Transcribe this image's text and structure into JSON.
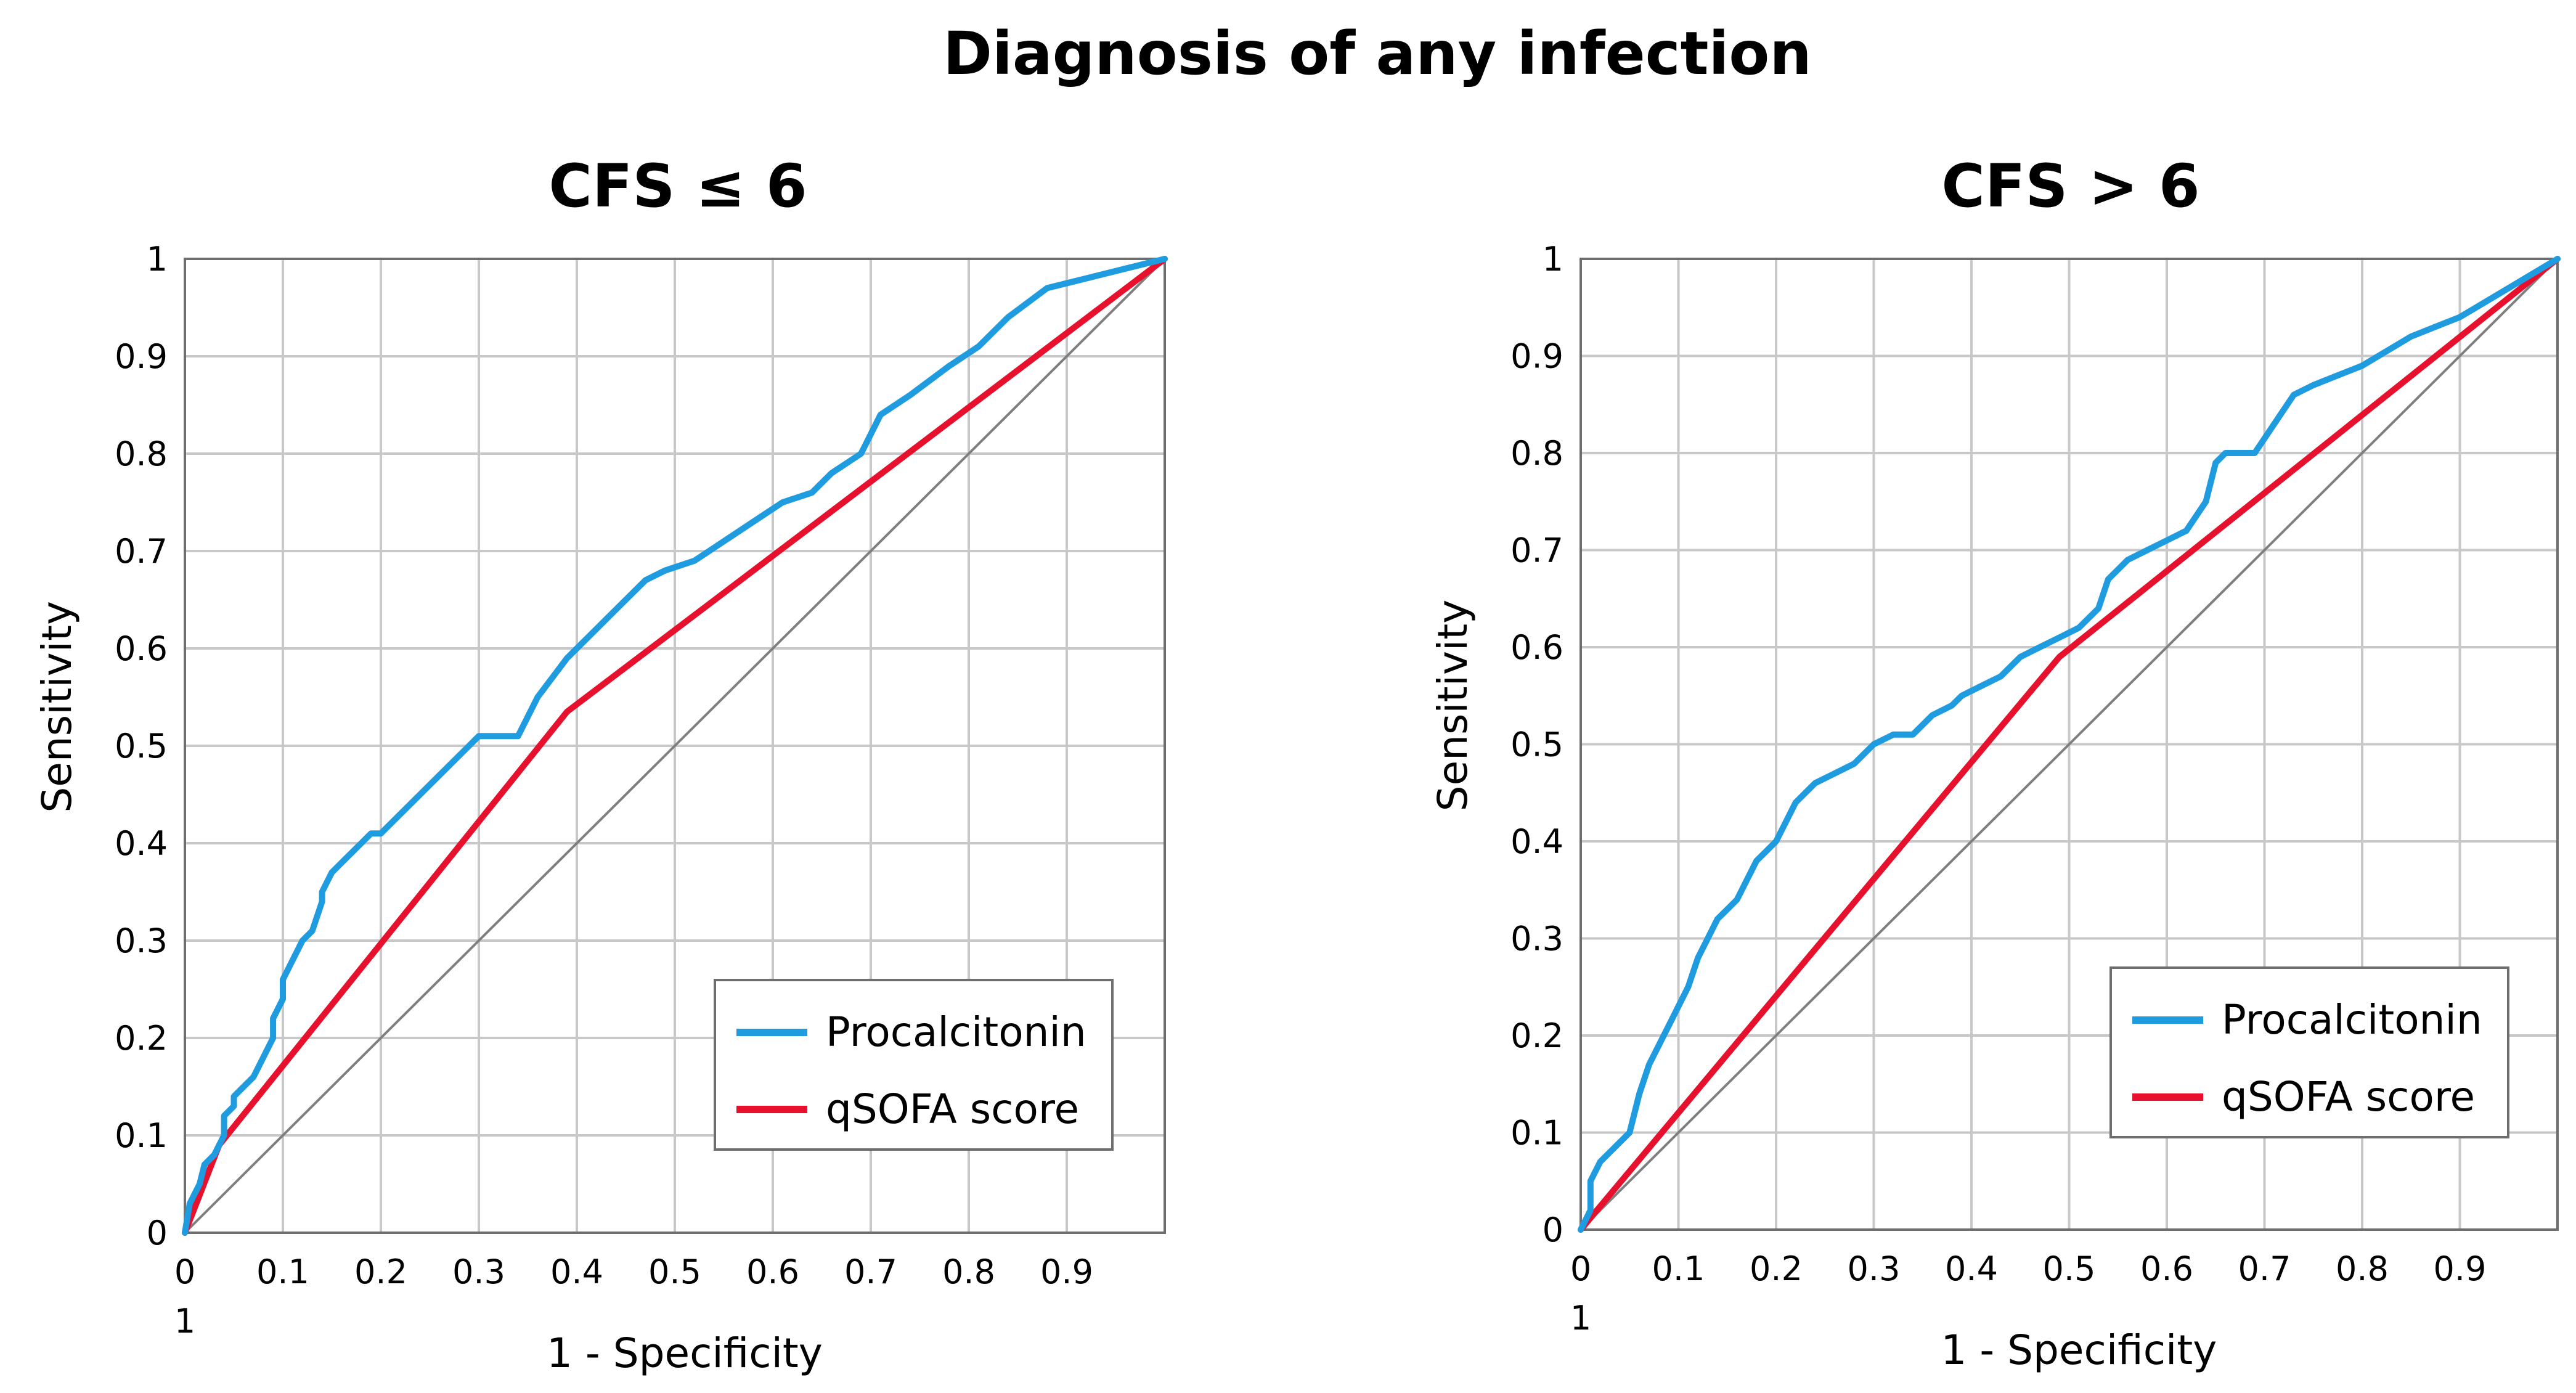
{
  "title": "Diagnosis of any infection",
  "colors": {
    "procalcitonin": "#1f9be0",
    "qsofa": "#e8112d",
    "reference": "#7f7f7f",
    "grid": "#c8c8c8"
  },
  "chart_data": [
    {
      "type": "line",
      "title": "CFS ≤ 6",
      "xlabel": "1 - Specificity",
      "ylabel": "Sensitivity",
      "xlim": [
        0,
        1
      ],
      "ylim": [
        0,
        1
      ],
      "x_ticks": [
        "0",
        "0.1",
        "0.2",
        "0.3",
        "0.4",
        "0.5",
        "0.6",
        "0.7",
        "0.8",
        "0.9"
      ],
      "x_ticks_extra": "1",
      "y_ticks": [
        "0",
        "0.1",
        "0.2",
        "0.3",
        "0.4",
        "0.5",
        "0.6",
        "0.7",
        "0.8",
        "0.9",
        "1"
      ],
      "legend": [
        "Procalcitonin",
        "qSOFA score"
      ],
      "series": [
        {
          "name": "Procalcitonin",
          "color": "#1f9be0",
          "x": [
            0,
            0.005,
            0.015,
            0.02,
            0.03,
            0.04,
            0.04,
            0.05,
            0.05,
            0.07,
            0.08,
            0.09,
            0.09,
            0.1,
            0.1,
            0.11,
            0.12,
            0.13,
            0.14,
            0.14,
            0.15,
            0.16,
            0.17,
            0.18,
            0.19,
            0.2,
            0.22,
            0.23,
            0.25,
            0.27,
            0.29,
            0.3,
            0.34,
            0.36,
            0.39,
            0.41,
            0.43,
            0.45,
            0.47,
            0.49,
            0.52,
            0.55,
            0.58,
            0.61,
            0.64,
            0.66,
            0.69,
            0.71,
            0.74,
            0.78,
            0.81,
            0.84,
            0.88,
            0.92,
            1.0
          ],
          "y": [
            0,
            0.03,
            0.05,
            0.07,
            0.08,
            0.1,
            0.12,
            0.13,
            0.14,
            0.16,
            0.18,
            0.2,
            0.22,
            0.24,
            0.26,
            0.28,
            0.3,
            0.31,
            0.34,
            0.35,
            0.37,
            0.38,
            0.39,
            0.4,
            0.41,
            0.41,
            0.43,
            0.44,
            0.46,
            0.48,
            0.5,
            0.51,
            0.51,
            0.55,
            0.59,
            0.61,
            0.63,
            0.65,
            0.67,
            0.68,
            0.69,
            0.71,
            0.73,
            0.75,
            0.76,
            0.78,
            0.8,
            0.84,
            0.86,
            0.89,
            0.91,
            0.94,
            0.97,
            0.98,
            1.0
          ]
        },
        {
          "name": "qSOFA score",
          "color": "#e8112d",
          "x": [
            0,
            0.035,
            0.39,
            1.0
          ],
          "y": [
            0,
            0.09,
            0.535,
            1.0
          ]
        },
        {
          "name": "Reference",
          "color": "#7f7f7f",
          "x": [
            0,
            1
          ],
          "y": [
            0,
            1
          ]
        }
      ]
    },
    {
      "type": "line",
      "title": "CFS > 6",
      "xlabel": "1 - Specificity",
      "ylabel": "Sensitivity",
      "xlim": [
        0,
        1
      ],
      "ylim": [
        0,
        1
      ],
      "x_ticks": [
        "0",
        "0.1",
        "0.2",
        "0.3",
        "0.4",
        "0.5",
        "0.6",
        "0.7",
        "0.8",
        "0.9"
      ],
      "x_ticks_extra": "1",
      "y_ticks": [
        "0",
        "0.1",
        "0.2",
        "0.3",
        "0.4",
        "0.5",
        "0.6",
        "0.7",
        "0.8",
        "0.9",
        "1"
      ],
      "legend": [
        "Procalcitonin",
        "qSOFA score"
      ],
      "series": [
        {
          "name": "Procalcitonin",
          "color": "#1f9be0",
          "x": [
            0,
            0.01,
            0.01,
            0.02,
            0.03,
            0.04,
            0.05,
            0.06,
            0.07,
            0.08,
            0.09,
            0.1,
            0.11,
            0.12,
            0.13,
            0.14,
            0.15,
            0.16,
            0.17,
            0.18,
            0.19,
            0.2,
            0.22,
            0.24,
            0.26,
            0.28,
            0.3,
            0.32,
            0.34,
            0.36,
            0.38,
            0.39,
            0.41,
            0.43,
            0.45,
            0.47,
            0.49,
            0.51,
            0.53,
            0.54,
            0.56,
            0.58,
            0.6,
            0.62,
            0.64,
            0.65,
            0.66,
            0.69,
            0.71,
            0.73,
            0.75,
            0.8,
            0.85,
            0.9,
            0.95,
            1.0
          ],
          "y": [
            0,
            0.02,
            0.05,
            0.07,
            0.08,
            0.09,
            0.1,
            0.14,
            0.17,
            0.19,
            0.21,
            0.23,
            0.25,
            0.28,
            0.3,
            0.32,
            0.33,
            0.34,
            0.36,
            0.38,
            0.39,
            0.4,
            0.44,
            0.46,
            0.47,
            0.48,
            0.5,
            0.51,
            0.51,
            0.53,
            0.54,
            0.55,
            0.56,
            0.57,
            0.59,
            0.6,
            0.61,
            0.62,
            0.64,
            0.67,
            0.69,
            0.7,
            0.71,
            0.72,
            0.75,
            0.79,
            0.8,
            0.8,
            0.83,
            0.86,
            0.87,
            0.89,
            0.92,
            0.94,
            0.97,
            1.0
          ]
        },
        {
          "name": "qSOFA score",
          "color": "#e8112d",
          "x": [
            0,
            0.49,
            1.0
          ],
          "y": [
            0,
            0.59,
            1.0
          ]
        },
        {
          "name": "Reference",
          "color": "#7f7f7f",
          "x": [
            0,
            1
          ],
          "y": [
            0,
            1
          ]
        }
      ]
    }
  ]
}
